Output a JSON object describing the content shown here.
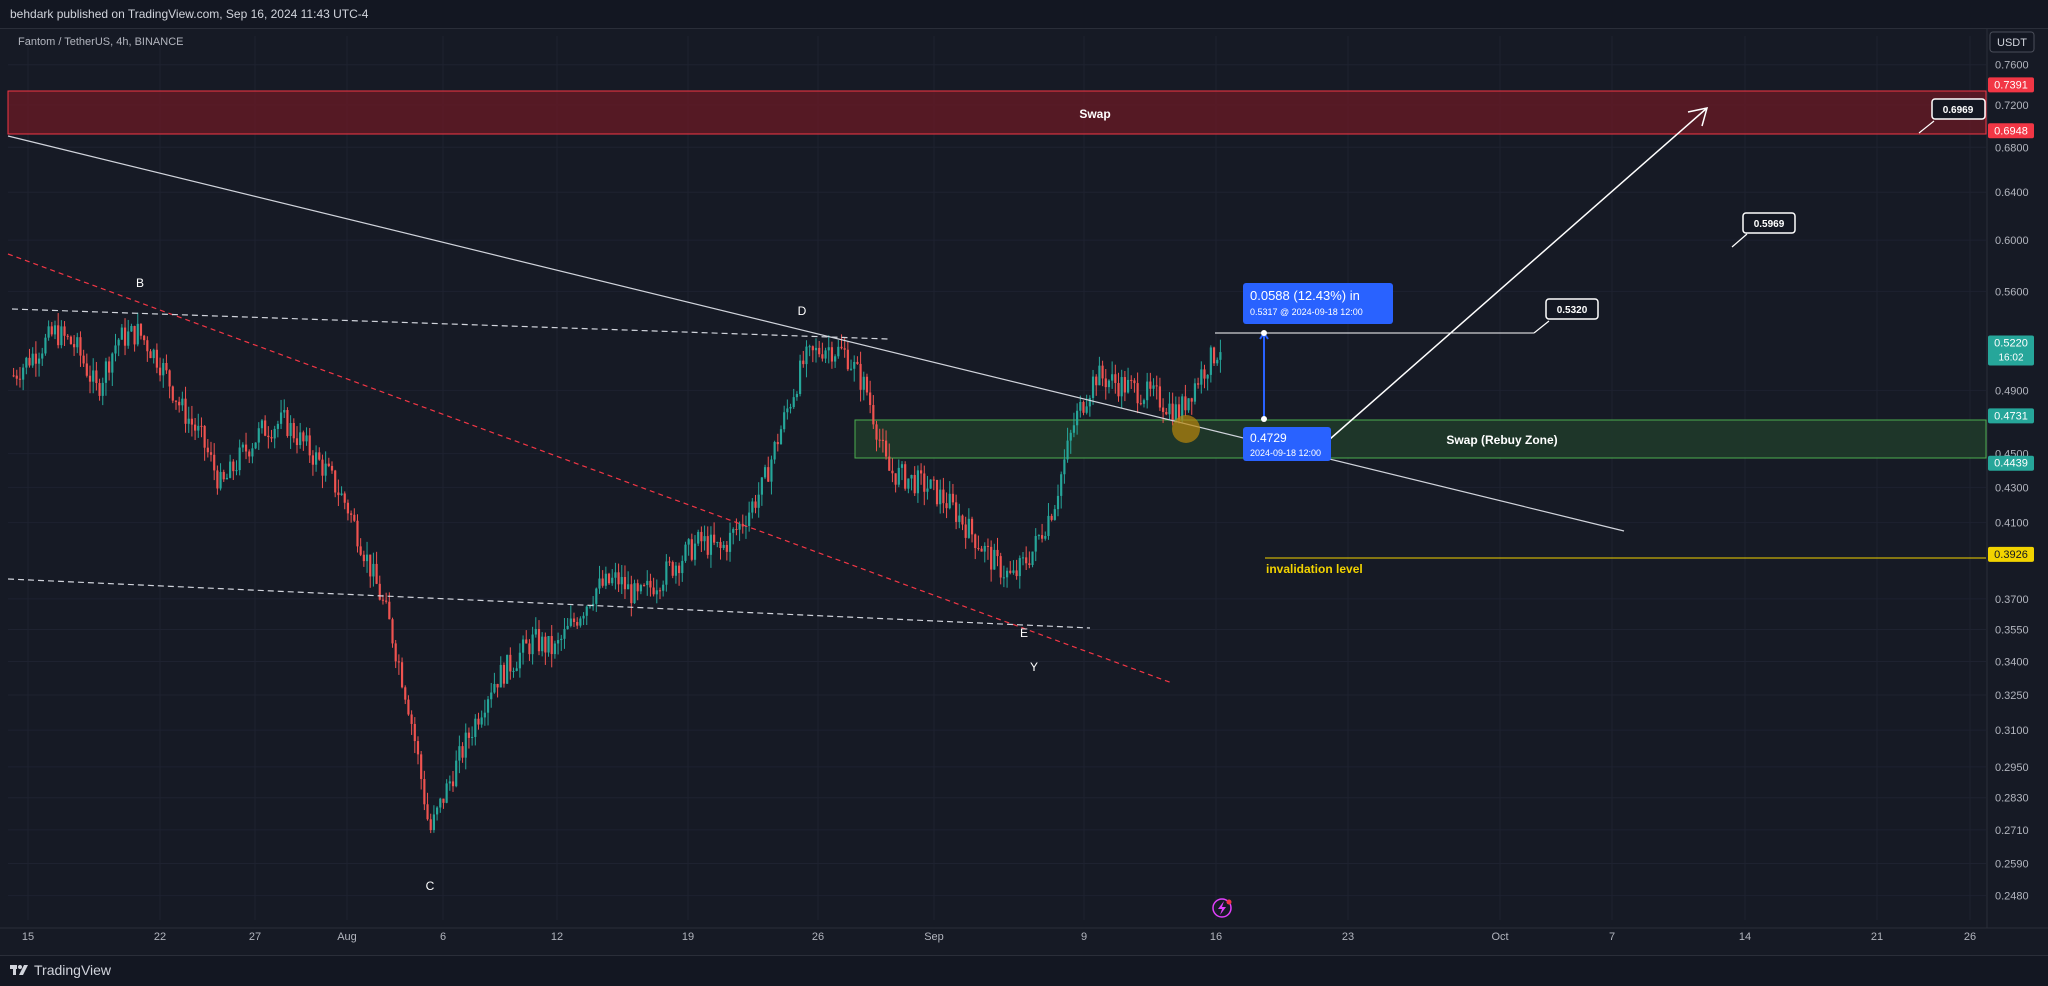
{
  "header": {
    "published_text": "behdark published on TradingView.com, Sep 16, 2024 11:43 UTC-4"
  },
  "symbol_info": "Fantom / TetherUS, 4h, BINANCE",
  "currency_badge": "USDT",
  "footer": {
    "brand": "TradingView"
  },
  "colors": {
    "background": "#161a25",
    "up_candle": "#26a69a",
    "down_candle": "#ef5350",
    "swap_zone": "#6b1a24",
    "rebuy_zone": "#1f3a2a",
    "invalidation": "#f2d300",
    "measure_blue": "#2962ff"
  },
  "chart_data": {
    "type": "candlestick",
    "symbol": "Fantom / TetherUS",
    "interval": "4h",
    "exchange": "BINANCE",
    "y_scale": "log",
    "ylim": [
      0.24,
      0.79
    ],
    "y_ticks": [
      "0.7600",
      "0.7200",
      "0.6800",
      "0.6400",
      "0.6000",
      "0.5600",
      "0.4900",
      "0.4500",
      "0.4300",
      "0.4100",
      "0.3700",
      "0.3550",
      "0.3400",
      "0.3250",
      "0.3100",
      "0.2950",
      "0.2830",
      "0.2710",
      "0.2590",
      "0.2480"
    ],
    "x_ticks": [
      "15",
      "22",
      "27",
      "Aug",
      "6",
      "12",
      "19",
      "26",
      "Sep",
      "9",
      "16",
      "23",
      "Oct",
      "7",
      "14",
      "21",
      "26"
    ],
    "price_labels": [
      {
        "value": "0.7391",
        "color": "#f23645"
      },
      {
        "value": "0.6948",
        "color": "#f23645"
      },
      {
        "value": "0.5220",
        "sub": "16:02",
        "color": "#26a69a"
      },
      {
        "value": "0.4731",
        "color": "#26a69a"
      },
      {
        "value": "0.4439",
        "color": "#26a69a"
      },
      {
        "value": "0.3926",
        "color": "#f2d300"
      }
    ],
    "swap_zone": {
      "label": "Swap",
      "top": 0.7391,
      "bottom": 0.6948
    },
    "rebuy_zone": {
      "label": "Swap (Rebuy Zone)",
      "top": 0.4731,
      "bottom": 0.4439
    },
    "invalidation": {
      "label": "invalidation level",
      "value": 0.3926
    },
    "wave_labels": [
      "B",
      "C",
      "D",
      "E",
      "Y"
    ],
    "target_callouts": [
      "0.6969",
      "0.5969",
      "0.5320"
    ],
    "measure": {
      "title": "0.0588 (12.43%) in",
      "top_detail": "0.5317 @ 2024-09-18  12:00",
      "bottom_price": "0.4729",
      "bottom_detail": "2024-09-18 12:00"
    },
    "price_path": [
      0.5,
      0.515,
      0.53,
      0.52,
      0.49,
      0.525,
      0.53,
      0.51,
      0.48,
      0.46,
      0.43,
      0.45,
      0.465,
      0.47,
      0.455,
      0.44,
      0.42,
      0.39,
      0.36,
      0.32,
      0.27,
      0.29,
      0.31,
      0.33,
      0.34,
      0.35,
      0.345,
      0.36,
      0.375,
      0.38,
      0.37,
      0.38,
      0.39,
      0.4,
      0.395,
      0.41,
      0.43,
      0.47,
      0.51,
      0.52,
      0.515,
      0.49,
      0.44,
      0.435,
      0.43,
      0.42,
      0.405,
      0.39,
      0.38,
      0.395,
      0.42,
      0.47,
      0.5,
      0.495,
      0.49,
      0.485,
      0.475,
      0.5,
      0.52
    ]
  }
}
